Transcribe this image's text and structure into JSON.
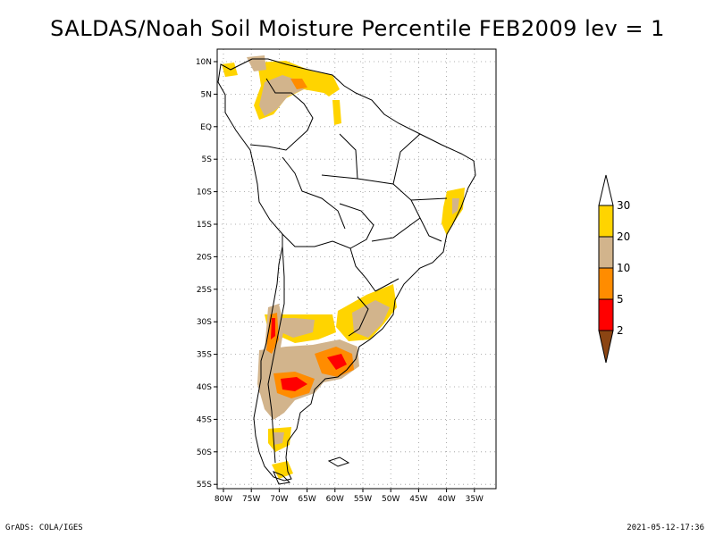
{
  "title": "SALDAS/Noah Soil Moisture Percentile FEB2009 lev = 1",
  "footer": {
    "left": "GrADS: COLA/IGES",
    "right": "2021-05-12-17:36"
  },
  "map": {
    "lat_labels": [
      "10N",
      "5N",
      "EQ",
      "5S",
      "10S",
      "15S",
      "20S",
      "25S",
      "30S",
      "35S",
      "40S",
      "45S",
      "50S",
      "55S"
    ],
    "lon_labels": [
      "80W",
      "75W",
      "70W",
      "65W",
      "60W",
      "55W",
      "50W",
      "45W",
      "40W",
      "35W"
    ]
  },
  "colorbar": {
    "levels": [
      "30",
      "20",
      "10",
      "5",
      "2"
    ],
    "colors": {
      "above30": "#ffffff",
      "p20_30": "#ffd400",
      "p10_20": "#d2b48c",
      "p5_10": "#ff8c00",
      "p2_5": "#ff0000",
      "below2": "#8b4513"
    }
  }
}
